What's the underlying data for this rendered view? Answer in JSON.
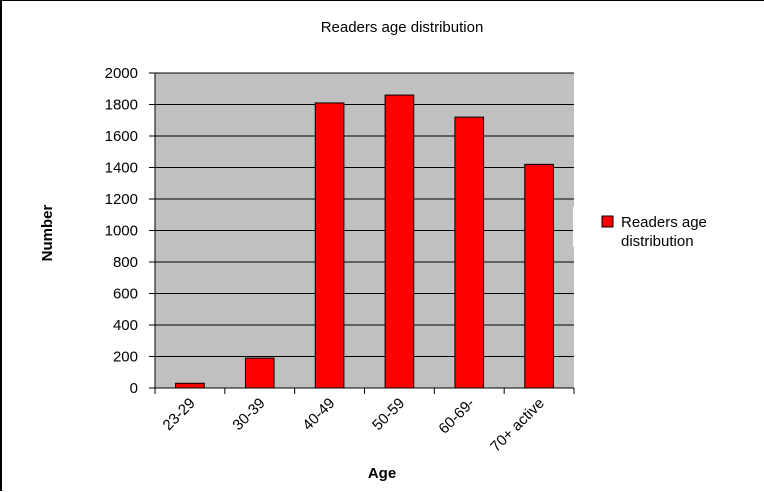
{
  "chart_data": {
    "type": "bar",
    "title": "Readers age distribution",
    "xlabel": "Age",
    "ylabel": "Number",
    "categories": [
      "23-29",
      "30-39",
      "40-49",
      "50-59",
      "60-69-",
      "70+ active"
    ],
    "series": [
      {
        "name": "Readers age distribution",
        "values": [
          30,
          190,
          1810,
          1860,
          1720,
          1420
        ]
      }
    ],
    "ylim": [
      0,
      2000
    ],
    "yticks": [
      0,
      200,
      400,
      600,
      800,
      1000,
      1200,
      1400,
      1600,
      1800,
      2000
    ],
    "grid": true,
    "legend_position": "right",
    "legend_label_lines": [
      "Readers age",
      "distribution"
    ],
    "colors": {
      "bar": "#ff0000",
      "plot_background": "#c0c0c0",
      "grid": "#000000"
    }
  }
}
